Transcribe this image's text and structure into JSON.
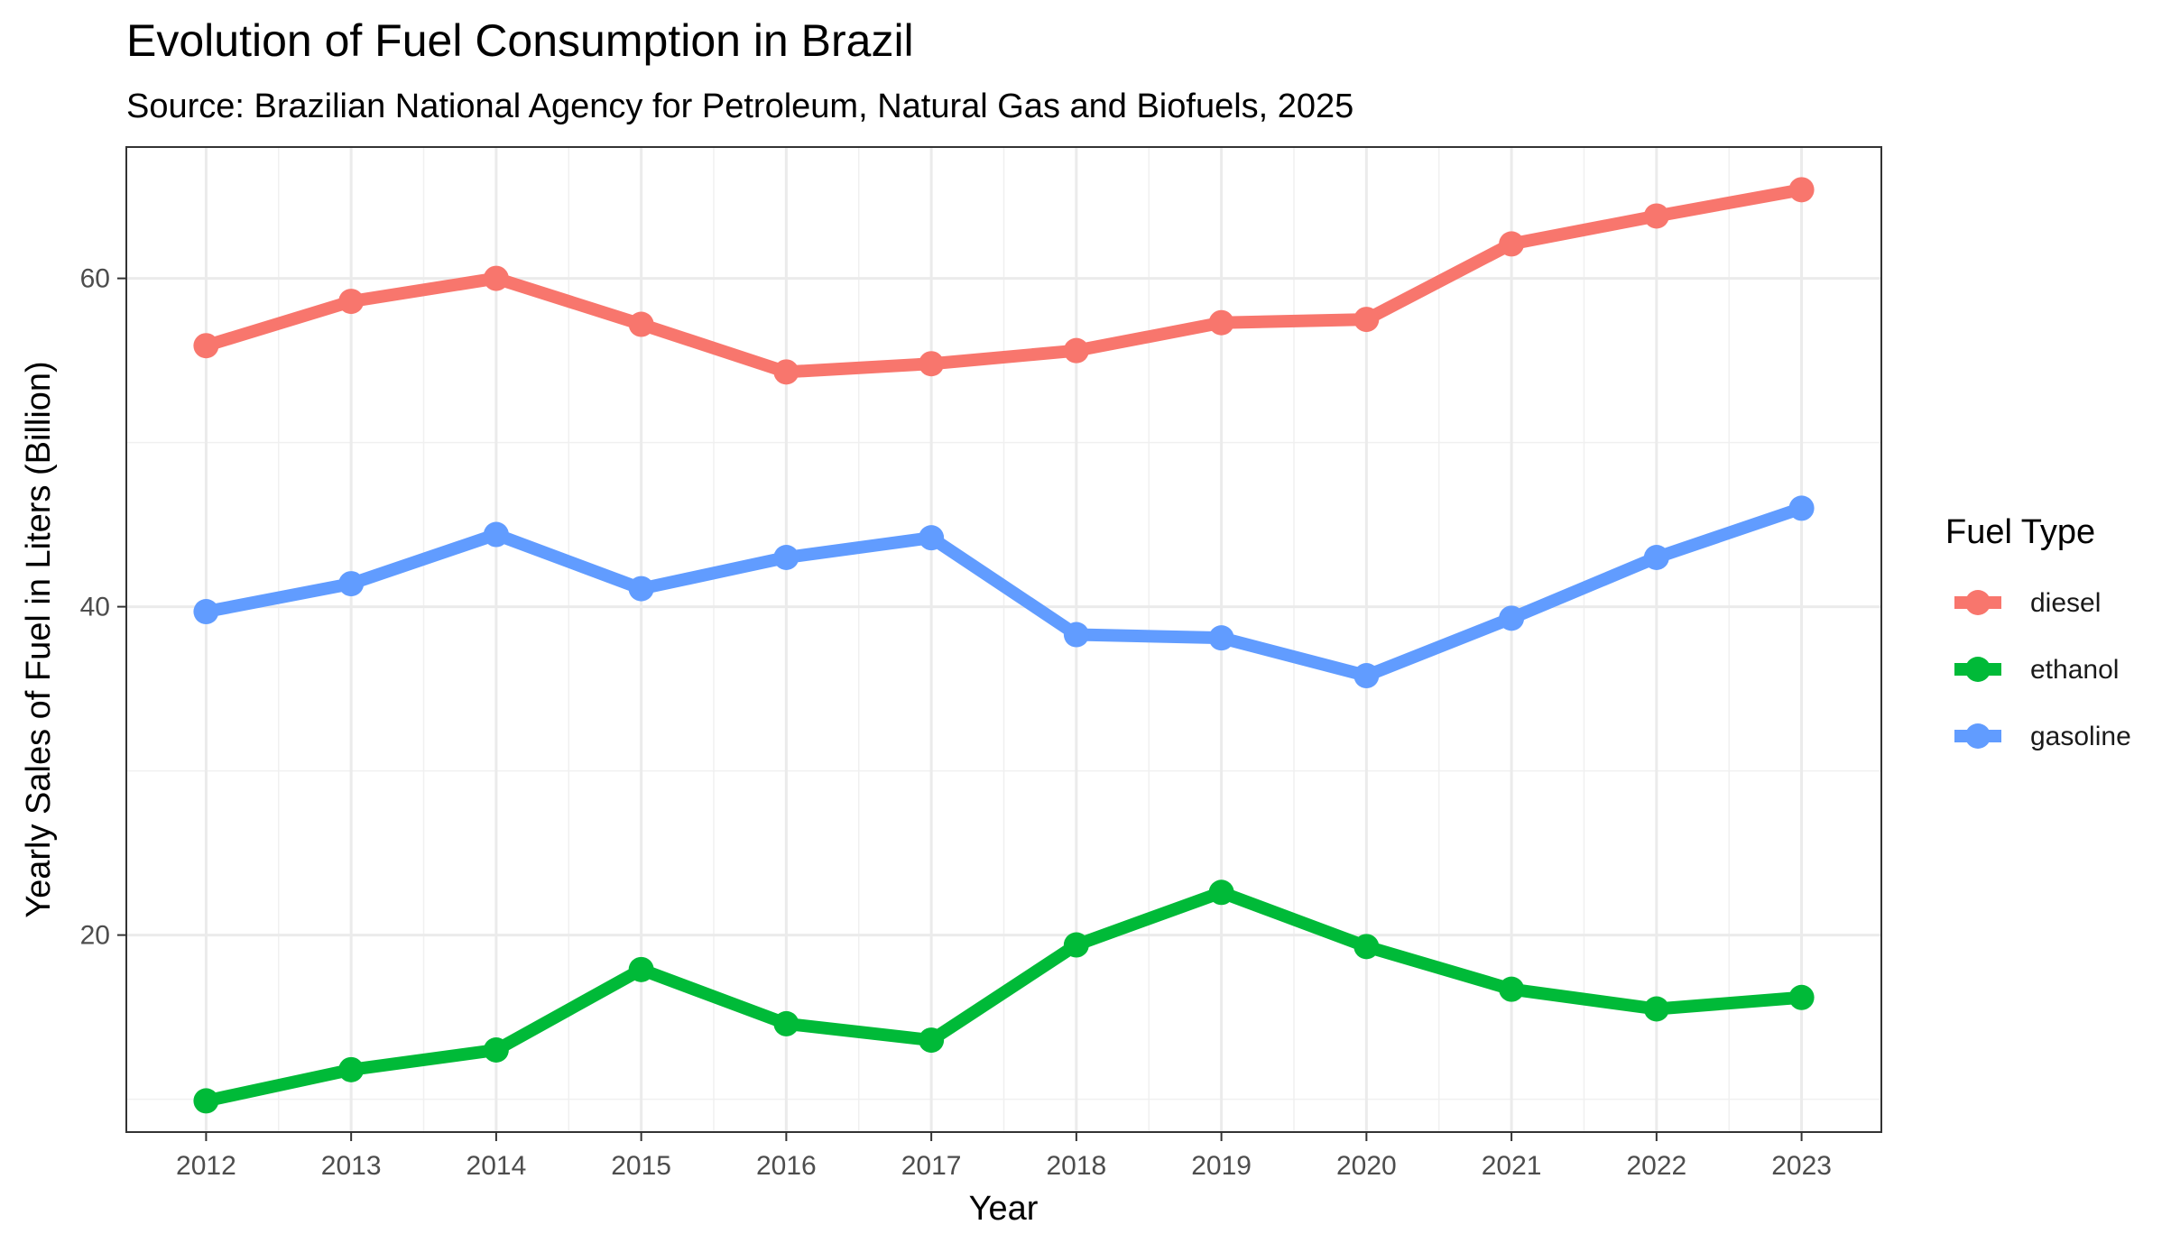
{
  "chart_data": {
    "type": "line",
    "title": "Evolution of Fuel Consumption in Brazil",
    "subtitle": "Source: Brazilian National Agency for Petroleum, Natural Gas and Biofuels, 2025",
    "xlabel": "Year",
    "ylabel": "Yearly Sales of Fuel in Liters (Billion)",
    "x": [
      2012,
      2013,
      2014,
      2015,
      2016,
      2017,
      2018,
      2019,
      2020,
      2021,
      2022,
      2023
    ],
    "y_ticks": [
      20,
      40,
      60
    ],
    "ylim": [
      8,
      68
    ],
    "grid": true,
    "legend_title": "Fuel Type",
    "legend_position": "right",
    "series": [
      {
        "name": "diesel",
        "color": "#F8766D",
        "values": [
          55.9,
          58.6,
          60.0,
          57.2,
          54.3,
          54.8,
          55.6,
          57.3,
          57.5,
          62.1,
          63.8,
          65.4
        ]
      },
      {
        "name": "ethanol",
        "color": "#00BA38",
        "values": [
          9.9,
          11.8,
          13.0,
          17.9,
          14.6,
          13.6,
          19.4,
          22.6,
          19.3,
          16.7,
          15.5,
          16.2
        ]
      },
      {
        "name": "gasoline",
        "color": "#619CFF",
        "values": [
          39.7,
          41.4,
          44.4,
          41.1,
          43.0,
          44.2,
          38.3,
          38.1,
          35.8,
          39.3,
          43.0,
          46.0
        ]
      }
    ]
  }
}
